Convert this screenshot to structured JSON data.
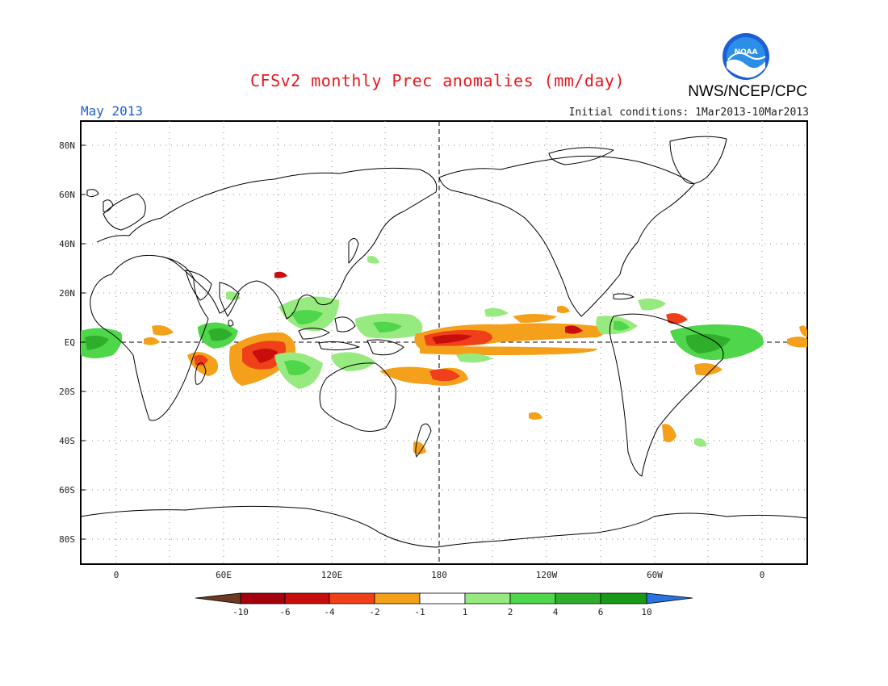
{
  "header": {
    "title": "CFSv2 monthly Prec anomalies (mm/day)",
    "agency": "NWS/NCEP/CPC",
    "logo_text": "NOAA",
    "valid_month": "May 2013",
    "initial_conditions": "Initial conditions: 1Mar2013-10Mar2013"
  },
  "map": {
    "lat_ticks": [
      "80N",
      "60N",
      "40N",
      "20N",
      "EQ",
      "20S",
      "40S",
      "60S",
      "80S"
    ],
    "lon_ticks": [
      "0",
      "60E",
      "120E",
      "180",
      "120W",
      "60W",
      "0"
    ]
  },
  "colorbar": {
    "labels": [
      "-10",
      "-6",
      "-4",
      "-2",
      "-1",
      "1",
      "2",
      "4",
      "6",
      "10"
    ],
    "colors": [
      "#6b3a21",
      "#a5000d",
      "#c80d0d",
      "#f0401a",
      "#f5a01a",
      "#ffffff",
      "#97ea7f",
      "#4fd64a",
      "#2fae2b",
      "#179a17",
      "#2a73e0"
    ]
  }
}
